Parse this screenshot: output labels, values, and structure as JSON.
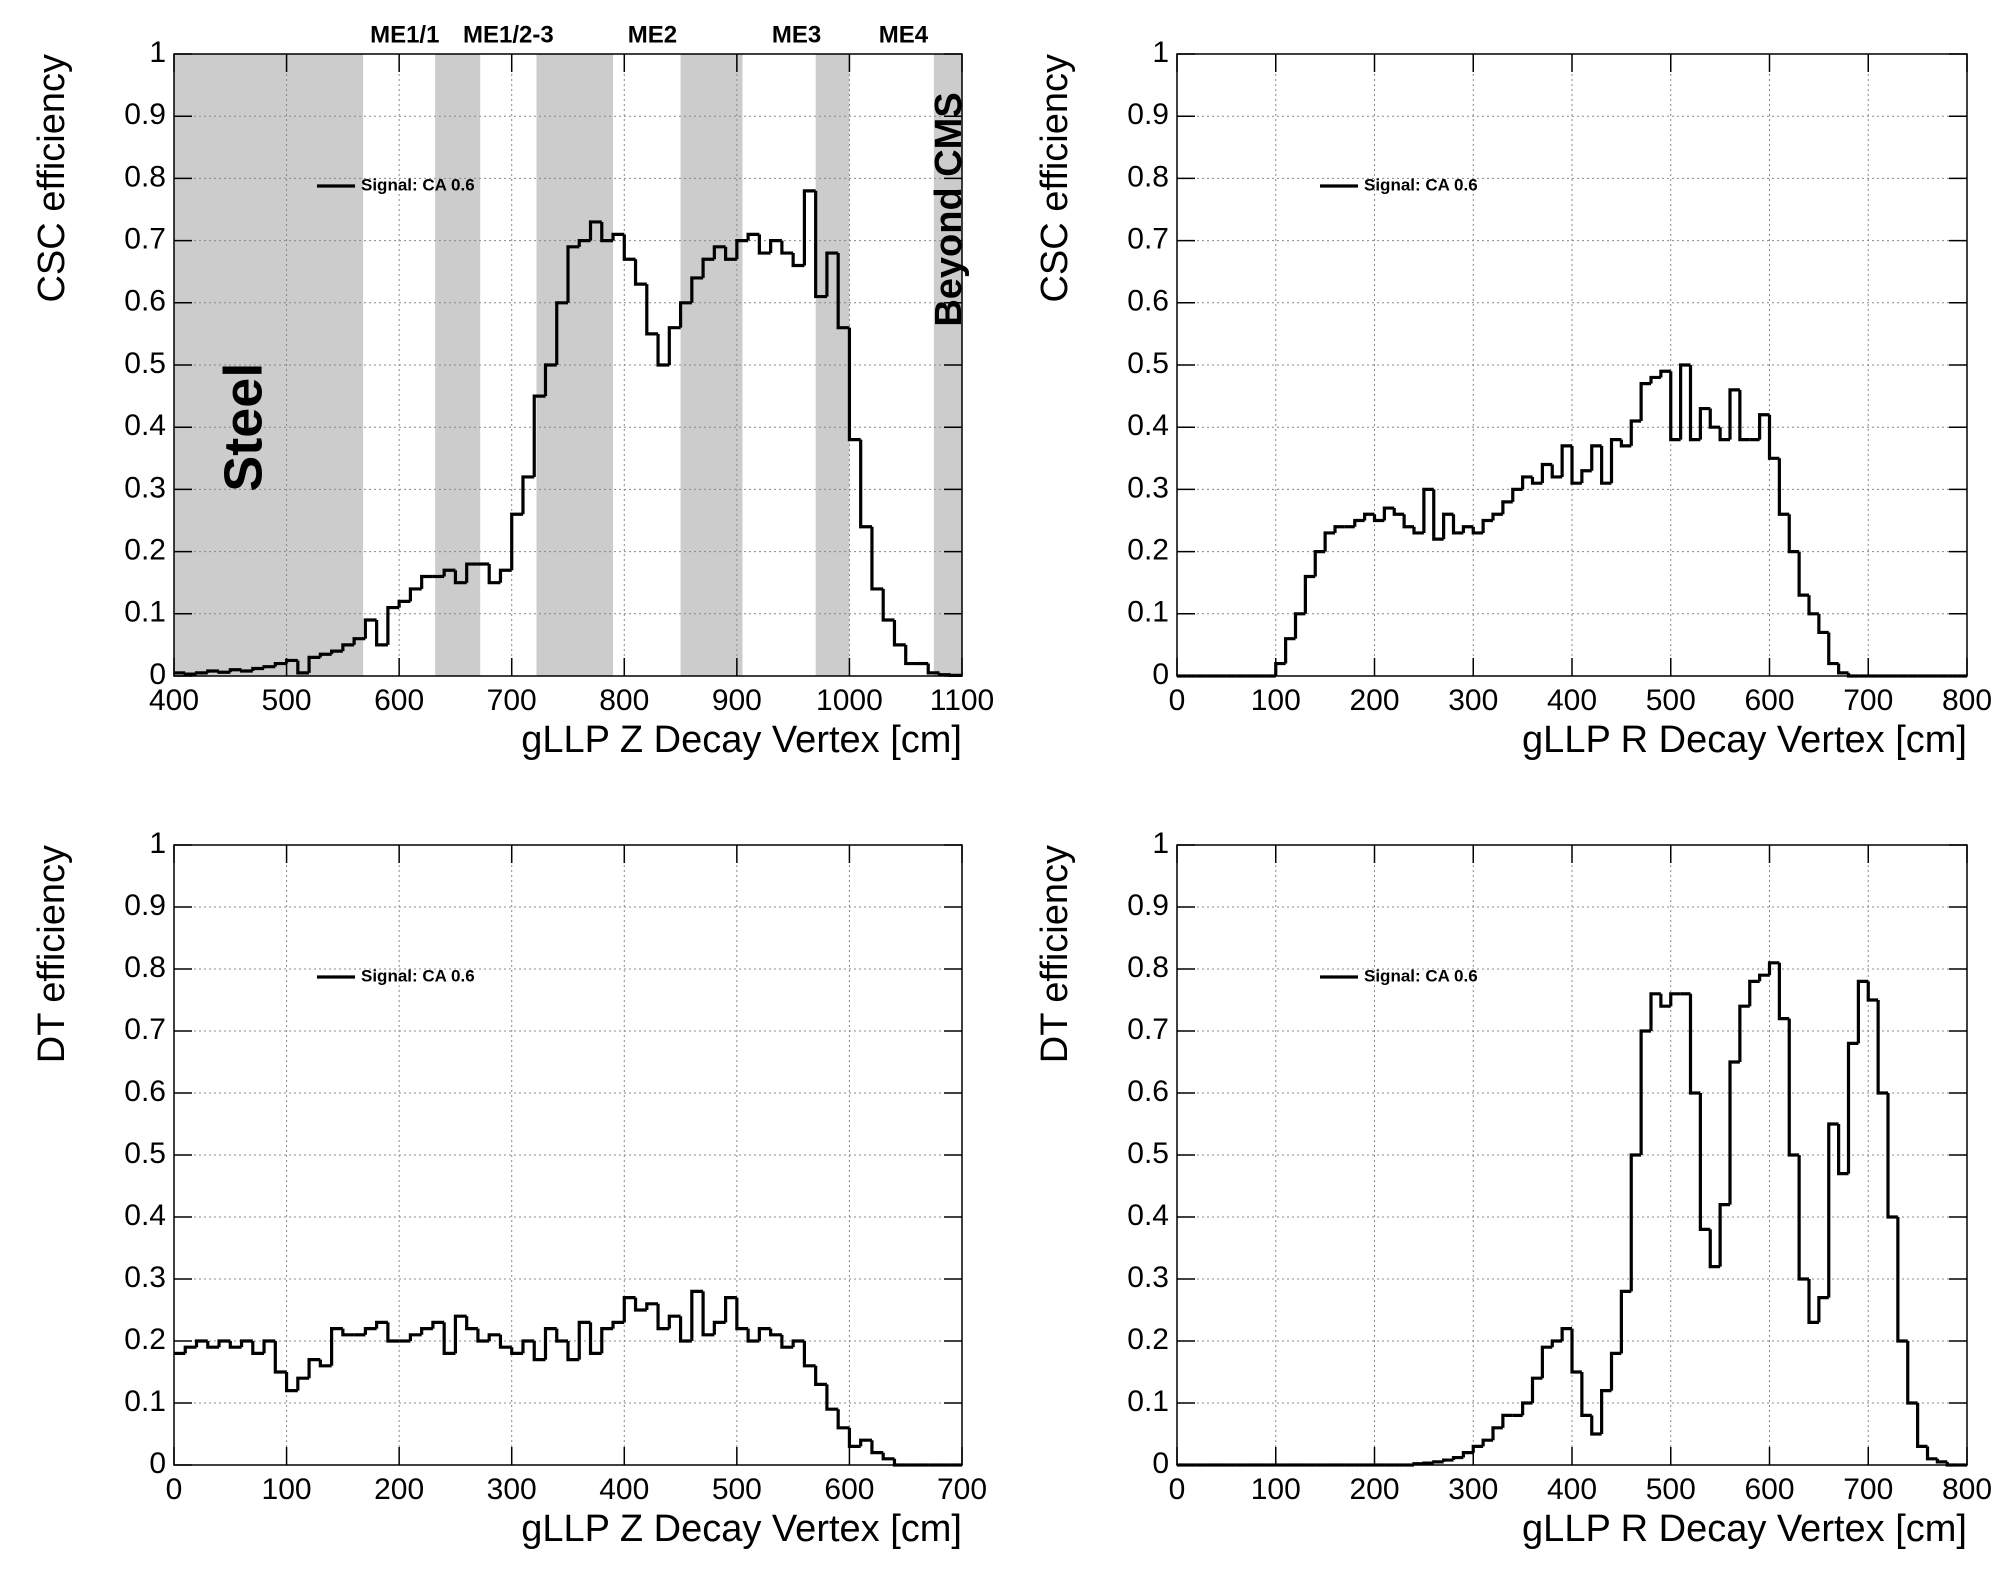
{
  "chart_data": [
    {
      "type": "histogram",
      "y_label": "CSC efficiency",
      "x_label": "gLLP Z Decay Vertex [cm]",
      "xlim": [
        400,
        1100
      ],
      "ylim": [
        0,
        1
      ],
      "xticks": [
        400,
        500,
        600,
        700,
        800,
        900,
        1000,
        1100
      ],
      "yticks": [
        0,
        0.1,
        0.2,
        0.3,
        0.4,
        0.5,
        0.6,
        0.7,
        0.8,
        0.9,
        1
      ],
      "grid": true,
      "regions": [
        {
          "from": 400,
          "to": 568
        },
        {
          "from": 632,
          "to": 672
        },
        {
          "from": 722,
          "to": 790
        },
        {
          "from": 850,
          "to": 905
        },
        {
          "from": 970,
          "to": 1000
        },
        {
          "from": 1075,
          "to": 1100
        }
      ],
      "region_color": "#cccccc",
      "top_labels": [
        {
          "text": "ME1/1",
          "x": 605
        },
        {
          "text": "ME1/2-3",
          "x": 697
        },
        {
          "text": "ME2",
          "x": 825
        },
        {
          "text": "ME3",
          "x": 953
        },
        {
          "text": "ME4",
          "x": 1048
        }
      ],
      "side_labels": [
        {
          "text": "Steel",
          "x": 465,
          "y": 0.4
        },
        {
          "text": "Beyond CMS",
          "x": 1090,
          "y": 0.75
        }
      ],
      "bins": [
        400,
        410,
        420,
        430,
        440,
        450,
        460,
        470,
        480,
        490,
        500,
        510,
        520,
        530,
        540,
        550,
        560,
        570,
        580,
        590,
        600,
        610,
        620,
        630,
        640,
        650,
        660,
        670,
        680,
        690,
        700,
        710,
        720,
        730,
        740,
        750,
        760,
        770,
        780,
        790,
        800,
        810,
        820,
        830,
        840,
        850,
        860,
        870,
        880,
        890,
        900,
        910,
        920,
        930,
        940,
        950,
        960,
        970,
        980,
        990,
        1000,
        1010,
        1020,
        1030,
        1040,
        1050,
        1060,
        1070,
        1080,
        1090,
        1100
      ],
      "series": [
        {
          "name": "Signal: CA 0.6",
          "color": "#000000",
          "values": [
            0.005,
            0.003,
            0.005,
            0.008,
            0.006,
            0.01,
            0.008,
            0.012,
            0.015,
            0.02,
            0.025,
            0.005,
            0.03,
            0.035,
            0.04,
            0.05,
            0.06,
            0.09,
            0.05,
            0.11,
            0.12,
            0.14,
            0.16,
            0.16,
            0.17,
            0.15,
            0.18,
            0.18,
            0.15,
            0.17,
            0.26,
            0.32,
            0.45,
            0.5,
            0.6,
            0.69,
            0.7,
            0.73,
            0.7,
            0.71,
            0.67,
            0.63,
            0.55,
            0.5,
            0.56,
            0.6,
            0.64,
            0.67,
            0.69,
            0.67,
            0.7,
            0.71,
            0.68,
            0.7,
            0.68,
            0.66,
            0.78,
            0.61,
            0.68,
            0.56,
            0.38,
            0.24,
            0.14,
            0.09,
            0.05,
            0.02,
            0.02,
            0.005,
            0.002,
            0.001
          ]
        }
      ]
    },
    {
      "type": "histogram",
      "y_label": "CSC efficiency",
      "x_label": "gLLP R Decay Vertex [cm]",
      "xlim": [
        0,
        800
      ],
      "ylim": [
        0,
        1
      ],
      "xticks": [
        0,
        100,
        200,
        300,
        400,
        500,
        600,
        700,
        800
      ],
      "yticks": [
        0,
        0.1,
        0.2,
        0.3,
        0.4,
        0.5,
        0.6,
        0.7,
        0.8,
        0.9,
        1
      ],
      "grid": true,
      "bins": [
        0,
        10,
        20,
        30,
        40,
        50,
        60,
        70,
        80,
        90,
        100,
        110,
        120,
        130,
        140,
        150,
        160,
        170,
        180,
        190,
        200,
        210,
        220,
        230,
        240,
        250,
        260,
        270,
        280,
        290,
        300,
        310,
        320,
        330,
        340,
        350,
        360,
        370,
        380,
        390,
        400,
        410,
        420,
        430,
        440,
        450,
        460,
        470,
        480,
        490,
        500,
        510,
        520,
        530,
        540,
        550,
        560,
        570,
        580,
        590,
        600,
        610,
        620,
        630,
        640,
        650,
        660,
        670,
        680,
        690,
        700,
        710,
        720,
        730,
        740,
        750,
        760,
        770,
        780,
        790,
        800
      ],
      "series": [
        {
          "name": "Signal: CA 0.6",
          "color": "#000000",
          "values": [
            0,
            0,
            0,
            0,
            0,
            0,
            0,
            0,
            0,
            0,
            0.02,
            0.06,
            0.1,
            0.16,
            0.2,
            0.23,
            0.24,
            0.24,
            0.25,
            0.26,
            0.25,
            0.27,
            0.26,
            0.24,
            0.23,
            0.3,
            0.22,
            0.26,
            0.23,
            0.24,
            0.23,
            0.25,
            0.26,
            0.28,
            0.3,
            0.32,
            0.31,
            0.34,
            0.32,
            0.37,
            0.31,
            0.33,
            0.37,
            0.31,
            0.38,
            0.37,
            0.41,
            0.47,
            0.48,
            0.49,
            0.38,
            0.5,
            0.38,
            0.43,
            0.4,
            0.38,
            0.46,
            0.38,
            0.38,
            0.42,
            0.35,
            0.26,
            0.2,
            0.13,
            0.1,
            0.07,
            0.02,
            0.005,
            0,
            0,
            0,
            0,
            0,
            0,
            0,
            0,
            0,
            0,
            0,
            0
          ]
        }
      ]
    },
    {
      "type": "histogram",
      "y_label": "DT efficiency",
      "x_label": "gLLP Z Decay Vertex [cm]",
      "xlim": [
        0,
        700
      ],
      "ylim": [
        0,
        1
      ],
      "xticks": [
        0,
        100,
        200,
        300,
        400,
        500,
        600,
        700
      ],
      "yticks": [
        0,
        0.1,
        0.2,
        0.3,
        0.4,
        0.5,
        0.6,
        0.7,
        0.8,
        0.9,
        1
      ],
      "grid": true,
      "bins": [
        0,
        10,
        20,
        30,
        40,
        50,
        60,
        70,
        80,
        90,
        100,
        110,
        120,
        130,
        140,
        150,
        160,
        170,
        180,
        190,
        200,
        210,
        220,
        230,
        240,
        250,
        260,
        270,
        280,
        290,
        300,
        310,
        320,
        330,
        340,
        350,
        360,
        370,
        380,
        390,
        400,
        410,
        420,
        430,
        440,
        450,
        460,
        470,
        480,
        490,
        500,
        510,
        520,
        530,
        540,
        550,
        560,
        570,
        580,
        590,
        600,
        610,
        620,
        630,
        640,
        650,
        660,
        670,
        680,
        690,
        700
      ],
      "series": [
        {
          "name": "Signal: CA 0.6",
          "color": "#000000",
          "values": [
            0.18,
            0.19,
            0.2,
            0.19,
            0.2,
            0.19,
            0.2,
            0.18,
            0.2,
            0.15,
            0.12,
            0.14,
            0.17,
            0.16,
            0.22,
            0.21,
            0.21,
            0.22,
            0.23,
            0.2,
            0.2,
            0.21,
            0.22,
            0.23,
            0.18,
            0.24,
            0.22,
            0.2,
            0.21,
            0.19,
            0.18,
            0.2,
            0.17,
            0.22,
            0.2,
            0.17,
            0.23,
            0.18,
            0.22,
            0.23,
            0.27,
            0.25,
            0.26,
            0.22,
            0.24,
            0.2,
            0.28,
            0.21,
            0.23,
            0.27,
            0.22,
            0.2,
            0.22,
            0.21,
            0.19,
            0.2,
            0.16,
            0.13,
            0.09,
            0.06,
            0.03,
            0.04,
            0.02,
            0.01,
            0,
            0,
            0,
            0,
            0,
            0
          ]
        }
      ]
    },
    {
      "type": "histogram",
      "y_label": "DT efficiency",
      "x_label": "gLLP R Decay Vertex [cm]",
      "xlim": [
        0,
        800
      ],
      "ylim": [
        0,
        1
      ],
      "xticks": [
        0,
        100,
        200,
        300,
        400,
        500,
        600,
        700,
        800
      ],
      "yticks": [
        0,
        0.1,
        0.2,
        0.3,
        0.4,
        0.5,
        0.6,
        0.7,
        0.8,
        0.9,
        1
      ],
      "grid": true,
      "bins": [
        0,
        10,
        20,
        30,
        40,
        50,
        60,
        70,
        80,
        90,
        100,
        110,
        120,
        130,
        140,
        150,
        160,
        170,
        180,
        190,
        200,
        210,
        220,
        230,
        240,
        250,
        260,
        270,
        280,
        290,
        300,
        310,
        320,
        330,
        340,
        350,
        360,
        370,
        380,
        390,
        400,
        410,
        420,
        430,
        440,
        450,
        460,
        470,
        480,
        490,
        500,
        510,
        520,
        530,
        540,
        550,
        560,
        570,
        580,
        590,
        600,
        610,
        620,
        630,
        640,
        650,
        660,
        670,
        680,
        690,
        700,
        710,
        720,
        730,
        740,
        750,
        760,
        770,
        780,
        790,
        800
      ],
      "series": [
        {
          "name": "Signal: CA 0.6",
          "color": "#000000",
          "values": [
            0,
            0,
            0,
            0,
            0,
            0,
            0,
            0,
            0,
            0,
            0,
            0,
            0,
            0,
            0,
            0,
            0,
            0,
            0,
            0,
            0,
            0,
            0,
            0,
            0.002,
            0.003,
            0.005,
            0.008,
            0.012,
            0.02,
            0.03,
            0.04,
            0.06,
            0.08,
            0.08,
            0.1,
            0.14,
            0.19,
            0.2,
            0.22,
            0.15,
            0.08,
            0.05,
            0.12,
            0.18,
            0.28,
            0.5,
            0.7,
            0.76,
            0.74,
            0.76,
            0.76,
            0.6,
            0.38,
            0.32,
            0.42,
            0.65,
            0.74,
            0.78,
            0.79,
            0.81,
            0.72,
            0.5,
            0.3,
            0.23,
            0.27,
            0.55,
            0.47,
            0.68,
            0.78,
            0.75,
            0.6,
            0.4,
            0.2,
            0.1,
            0.03,
            0.01,
            0.005,
            0,
            0
          ]
        }
      ]
    }
  ]
}
